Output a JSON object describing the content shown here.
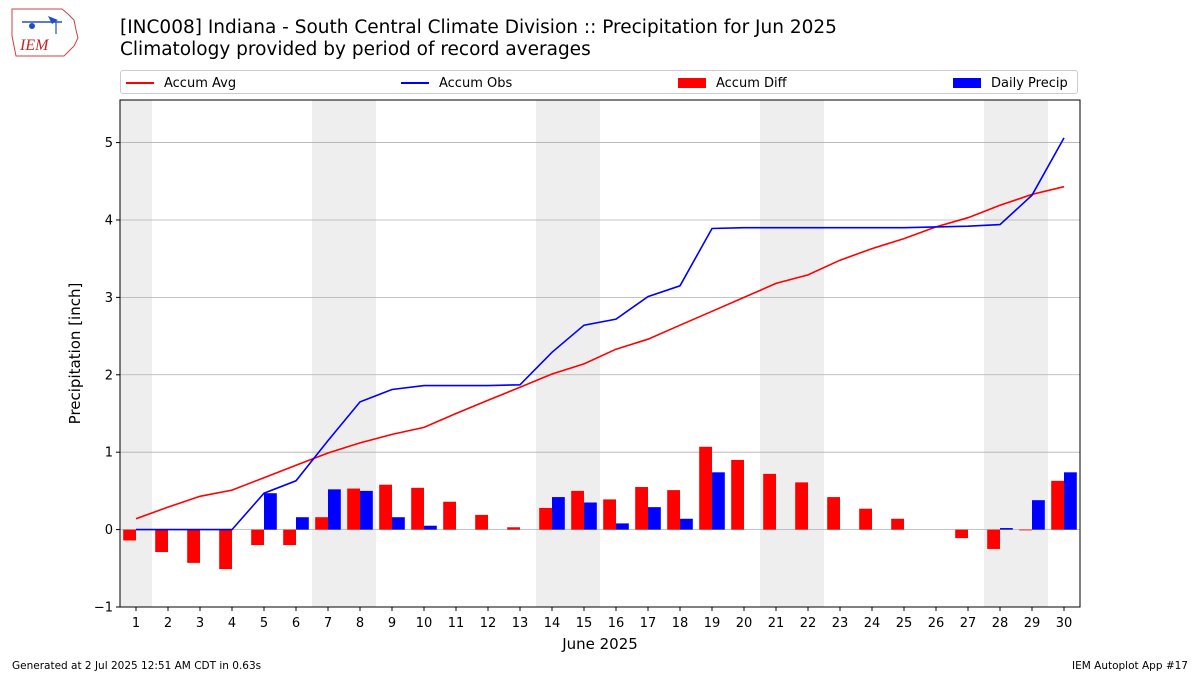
{
  "header": {
    "title": "[INC008] Indiana - South Central Climate Division :: Precipitation for Jun 2025",
    "subtitle": "Climatology provided by period of record averages",
    "logo_text": "IEM"
  },
  "legend": {
    "accum_avg": "Accum Avg",
    "accum_obs": "Accum Obs",
    "accum_diff": "Accum Diff",
    "daily_precip": "Daily Precip"
  },
  "footer": {
    "generated": "Generated at 2 Jul 2025 12:51 AM CDT in 0.63s",
    "app": "IEM Autoplot App #17"
  },
  "colors": {
    "avg": "#ff0000",
    "obs": "#0000ff",
    "diff": "#ff0000",
    "daily": "#0000ff",
    "weekend_shade": "#eeeeee",
    "grid": "#b0b0b0"
  },
  "chart_data": {
    "type": "bar",
    "xlabel": "June 2025",
    "ylabel": "Precipitation [inch]",
    "ylim": [
      -1,
      5.55
    ],
    "yticks": [
      -1,
      0,
      1,
      2,
      3,
      4,
      5
    ],
    "grid": "horizontal",
    "legend_placement": "top",
    "categories": [
      1,
      2,
      3,
      4,
      5,
      6,
      7,
      8,
      9,
      10,
      11,
      12,
      13,
      14,
      15,
      16,
      17,
      18,
      19,
      20,
      21,
      22,
      23,
      24,
      25,
      26,
      27,
      28,
      29,
      30
    ],
    "shaded_days": [
      1,
      7,
      8,
      14,
      15,
      21,
      22,
      28,
      29
    ],
    "series": [
      {
        "name": "Accum Avg",
        "kind": "line",
        "values": [
          0.14,
          0.29,
          0.43,
          0.51,
          0.67,
          0.83,
          0.99,
          1.12,
          1.23,
          1.32,
          1.5,
          1.67,
          1.84,
          2.01,
          2.14,
          2.33,
          2.46,
          2.64,
          2.82,
          3.0,
          3.18,
          3.29,
          3.48,
          3.63,
          3.76,
          3.91,
          4.03,
          4.19,
          4.33,
          4.43
        ]
      },
      {
        "name": "Accum Obs",
        "kind": "line",
        "values": [
          0.0,
          0.0,
          0.0,
          0.0,
          0.47,
          0.63,
          1.15,
          1.65,
          1.81,
          1.86,
          1.86,
          1.86,
          1.87,
          2.29,
          2.64,
          2.72,
          3.01,
          3.15,
          3.89,
          3.9,
          3.9,
          3.9,
          3.9,
          3.9,
          3.9,
          3.91,
          3.92,
          3.94,
          4.32,
          5.06
        ]
      },
      {
        "name": "Accum Diff",
        "kind": "bar",
        "values": [
          -0.14,
          -0.29,
          -0.43,
          -0.51,
          -0.2,
          -0.2,
          0.16,
          0.53,
          0.58,
          0.54,
          0.36,
          0.19,
          0.03,
          0.28,
          0.5,
          0.39,
          0.55,
          0.51,
          1.07,
          0.9,
          0.72,
          0.61,
          0.42,
          0.27,
          0.14,
          0.0,
          -0.11,
          -0.25,
          -0.01,
          0.63
        ]
      },
      {
        "name": "Daily Precip",
        "kind": "bar",
        "values": [
          0.0,
          0.0,
          0.0,
          0.0,
          0.47,
          0.16,
          0.52,
          0.5,
          0.16,
          0.05,
          0.0,
          0.0,
          0.0,
          0.42,
          0.35,
          0.08,
          0.29,
          0.14,
          0.74,
          0.0,
          0.0,
          0.0,
          0.0,
          0.0,
          0.0,
          0.0,
          0.0,
          0.02,
          0.38,
          0.74
        ]
      }
    ]
  }
}
